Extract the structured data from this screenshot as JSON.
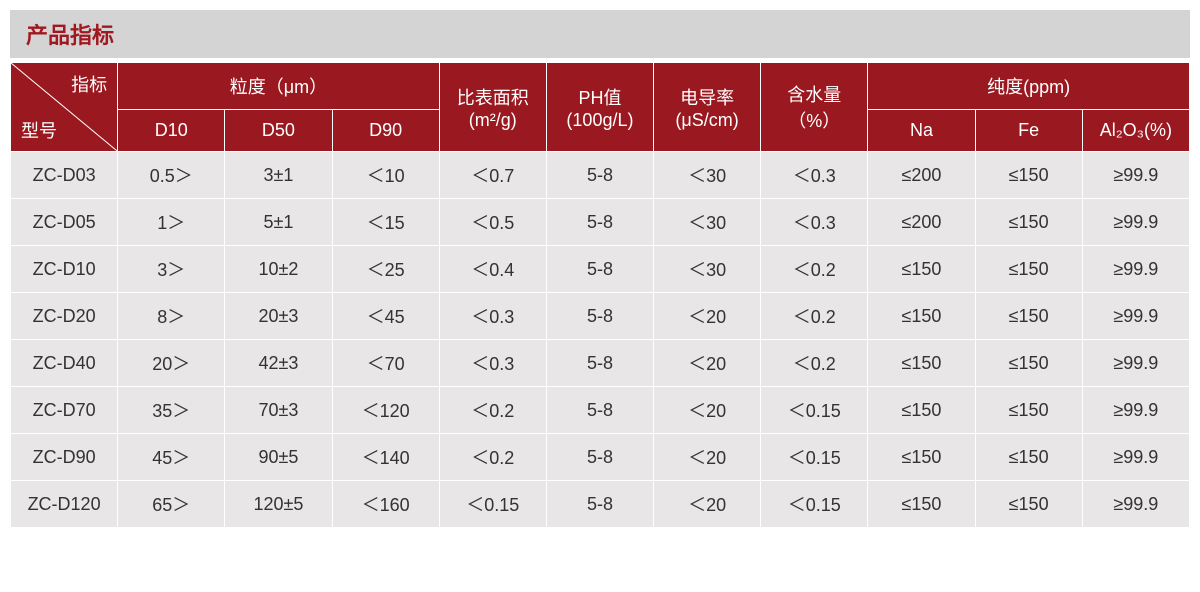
{
  "title": "产品指标",
  "colors": {
    "header_bg": "#9a1820",
    "header_text": "#ffffff",
    "cell_bg": "#e8e6e6",
    "cell_text": "#333333",
    "title_bg": "#d4d4d4",
    "title_text": "#a01820",
    "border": "#ffffff"
  },
  "diagonal": {
    "top": "指标",
    "bottom": "型号"
  },
  "header_groups": {
    "particle": "粒度（μm）",
    "particle_sub": [
      "D10",
      "D50",
      "D90"
    ],
    "ssa": "比表面积",
    "ssa_unit": "(m²/g)",
    "ph": "PH值",
    "ph_unit": "(100g/L)",
    "cond": "电导率",
    "cond_unit": "(μS/cm)",
    "water": "含水量",
    "water_unit": "（%）",
    "purity": "纯度(ppm)",
    "purity_sub": [
      "Na",
      "Fe",
      "Al₂O₃(%)"
    ]
  },
  "rows": [
    {
      "model": "ZC-D03",
      "d10": "0.5＞",
      "d50": "3±1",
      "d90": "＜10",
      "ssa": "＜0.7",
      "ph": "5-8",
      "cond": "＜30",
      "water": "＜0.3",
      "na": "≤200",
      "fe": "≤150",
      "al": "≥99.9"
    },
    {
      "model": "ZC-D05",
      "d10": "1＞",
      "d50": "5±1",
      "d90": "＜15",
      "ssa": "＜0.5",
      "ph": "5-8",
      "cond": "＜30",
      "water": "＜0.3",
      "na": "≤200",
      "fe": "≤150",
      "al": "≥99.9"
    },
    {
      "model": "ZC-D10",
      "d10": "3＞",
      "d50": "10±2",
      "d90": "＜25",
      "ssa": "＜0.4",
      "ph": "5-8",
      "cond": "＜30",
      "water": "＜0.2",
      "na": "≤150",
      "fe": "≤150",
      "al": "≥99.9"
    },
    {
      "model": "ZC-D20",
      "d10": "8＞",
      "d50": "20±3",
      "d90": "＜45",
      "ssa": "＜0.3",
      "ph": "5-8",
      "cond": "＜20",
      "water": "＜0.2",
      "na": "≤150",
      "fe": "≤150",
      "al": "≥99.9"
    },
    {
      "model": "ZC-D40",
      "d10": "20＞",
      "d50": "42±3",
      "d90": "＜70",
      "ssa": "＜0.3",
      "ph": "5-8",
      "cond": "＜20",
      "water": "＜0.2",
      "na": "≤150",
      "fe": "≤150",
      "al": "≥99.9"
    },
    {
      "model": "ZC-D70",
      "d10": "35＞",
      "d50": "70±3",
      "d90": "＜120",
      "ssa": "＜0.2",
      "ph": "5-8",
      "cond": "＜20",
      "water": "＜0.15",
      "na": "≤150",
      "fe": "≤150",
      "al": "≥99.9"
    },
    {
      "model": "ZC-D90",
      "d10": "45＞",
      "d50": "90±5",
      "d90": "＜140",
      "ssa": "＜0.2",
      "ph": "5-8",
      "cond": "＜20",
      "water": "＜0.15",
      "na": "≤150",
      "fe": "≤150",
      "al": "≥99.9"
    },
    {
      "model": "ZC-D120",
      "d10": "65＞",
      "d50": "120±5",
      "d90": "＜160",
      "ssa": "＜0.15",
      "ph": "5-8",
      "cond": "＜20",
      "water": "＜0.15",
      "na": "≤150",
      "fe": "≤150",
      "al": "≥99.9"
    }
  ]
}
